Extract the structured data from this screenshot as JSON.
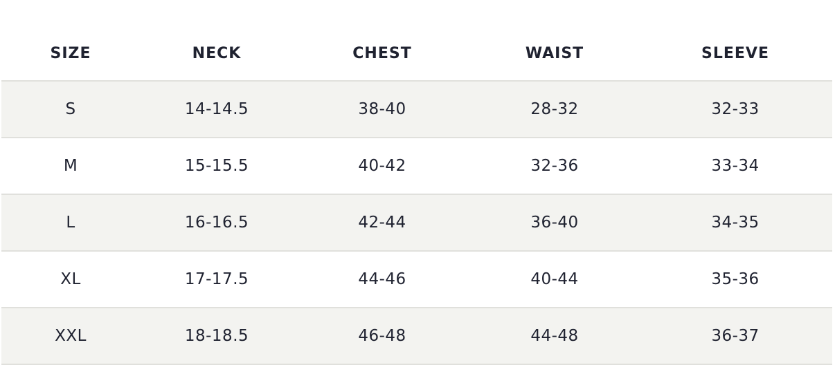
{
  "table": {
    "header": [
      "SIZE",
      "NECK",
      "CHEST",
      "WAIST",
      "SLEEVE"
    ],
    "rows": [
      [
        "S",
        "14-14.5",
        "38-40",
        "28-32",
        "32-33"
      ],
      [
        "M",
        "15-15.5",
        "40-42",
        "32-36",
        "33-34"
      ],
      [
        "L",
        "16-16.5",
        "42-44",
        "36-40",
        "34-35"
      ],
      [
        "XL",
        "17-17.5",
        "44-46",
        "40-44",
        "35-36"
      ],
      [
        "XXL",
        "18-18.5",
        "46-48",
        "44-48",
        "36-37"
      ]
    ]
  }
}
